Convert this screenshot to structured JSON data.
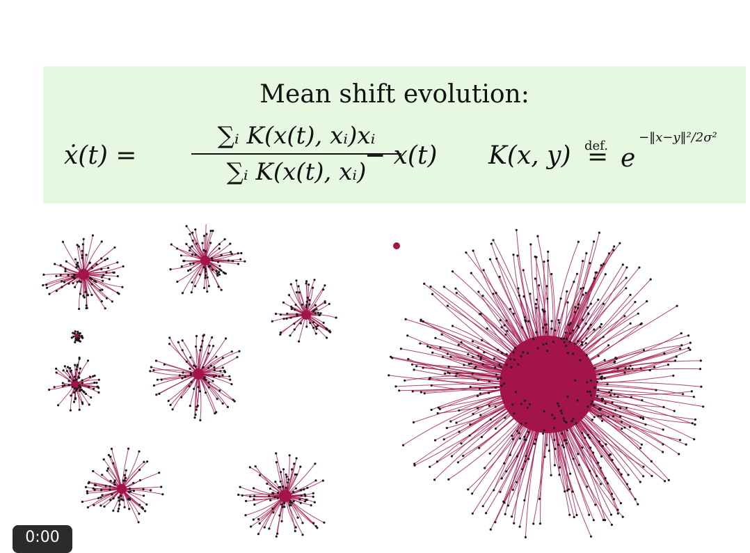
{
  "formula": {
    "title": "Mean shift evolution:",
    "lhs": "ẋ(t) =",
    "numerator": "∑ᵢ K(x(t), xᵢ)xᵢ",
    "denominator": "∑ᵢ K(x(t), xᵢ)",
    "minus_term": "− x(t)",
    "kernel_lhs": "K(x, y)",
    "def_label": "def.",
    "equals": "=",
    "kernel_base": "e",
    "kernel_exponent": "−‖x−y‖²/2σ²"
  },
  "plots": {
    "left_panel": {
      "stroke_color": "#a3154a",
      "point_color": "#1a1a1a",
      "cluster_count": 8
    },
    "right_panel": {
      "stroke_color": "#a3154a",
      "point_color": "#1a1a1a",
      "cluster_count": 1
    }
  },
  "video": {
    "timestamp": "0:00"
  }
}
